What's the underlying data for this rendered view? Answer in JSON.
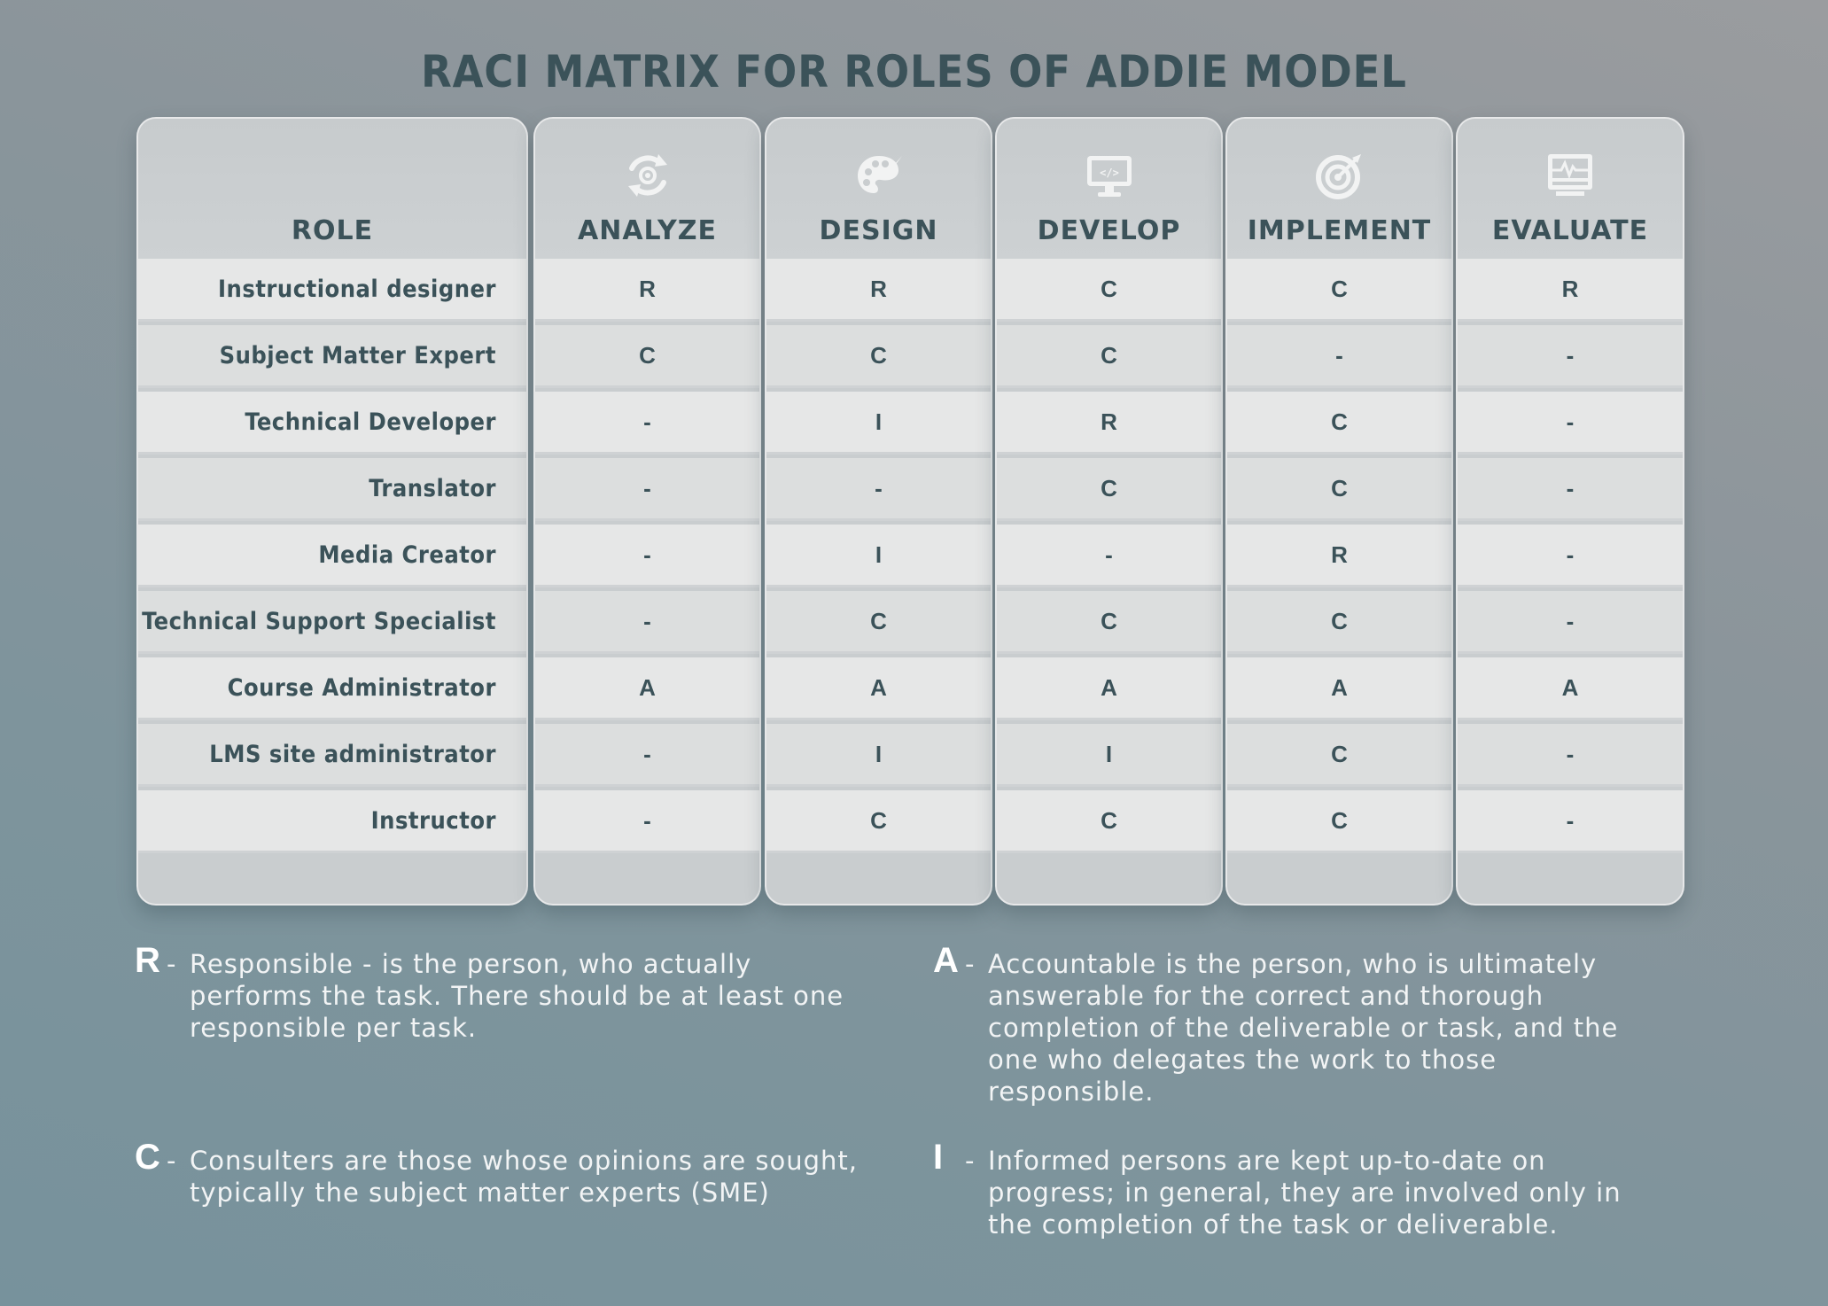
{
  "title": "RACI MATRIX FOR ROLES OF ADDIE MODEL",
  "columns": {
    "role": "ROLE",
    "phases": [
      {
        "label": "ANALYZE",
        "icon": "cycle-arrows-icon"
      },
      {
        "label": "DESIGN",
        "icon": "palette-icon"
      },
      {
        "label": "DEVELOP",
        "icon": "code-monitor-icon"
      },
      {
        "label": "IMPLEMENT",
        "icon": "target-icon"
      },
      {
        "label": "EVALUATE",
        "icon": "pulse-monitor-icon"
      }
    ]
  },
  "rows": [
    {
      "role": "Instructional designer",
      "cells": [
        "R",
        "R",
        "C",
        "C",
        "R"
      ]
    },
    {
      "role": "Subject Matter Expert",
      "cells": [
        "C",
        "C",
        "C",
        "-",
        "-"
      ]
    },
    {
      "role": "Technical Developer",
      "cells": [
        "-",
        "I",
        "R",
        "C",
        "-"
      ]
    },
    {
      "role": "Translator",
      "cells": [
        "-",
        "-",
        "C",
        "C",
        "-"
      ]
    },
    {
      "role": "Media Creator",
      "cells": [
        "-",
        "I",
        "-",
        "R",
        "-"
      ]
    },
    {
      "role": "Technical Support Specialist",
      "cells": [
        "-",
        "C",
        "C",
        "C",
        "-"
      ]
    },
    {
      "role": "Course Administrator",
      "cells": [
        "A",
        "A",
        "A",
        "A",
        "A"
      ]
    },
    {
      "role": "LMS site administrator",
      "cells": [
        "-",
        "I",
        "I",
        "C",
        "-"
      ]
    },
    {
      "role": "Instructor",
      "cells": [
        "-",
        "C",
        "C",
        "C",
        "-"
      ]
    }
  ],
  "legend": [
    {
      "letter": "R",
      "dash": "-",
      "text": "Responsible - is the person, who actually performs the task. There should be at least one responsible per task."
    },
    {
      "letter": "A",
      "dash": "-",
      "text": "Accountable is the person, who is ultimately answerable for the correct and thorough completion of the deliverable or task, and the one who delegates the work to those responsible."
    },
    {
      "letter": "C",
      "dash": "-",
      "text": "Consulters are those whose opinions are sought, typically the subject matter experts (SME)"
    },
    {
      "letter": "I",
      "dash": "-",
      "text": "Informed persons are kept up-to-date on progress; in general, they are involved only in the completion of the task or deliverable."
    }
  ],
  "colors": {
    "heading": "#3b5259",
    "cell_bg": "#e6e7e7",
    "header_bg": "#c9cdcf",
    "icon": "#f2f3f3",
    "legend_text": "#f2f4f5"
  }
}
